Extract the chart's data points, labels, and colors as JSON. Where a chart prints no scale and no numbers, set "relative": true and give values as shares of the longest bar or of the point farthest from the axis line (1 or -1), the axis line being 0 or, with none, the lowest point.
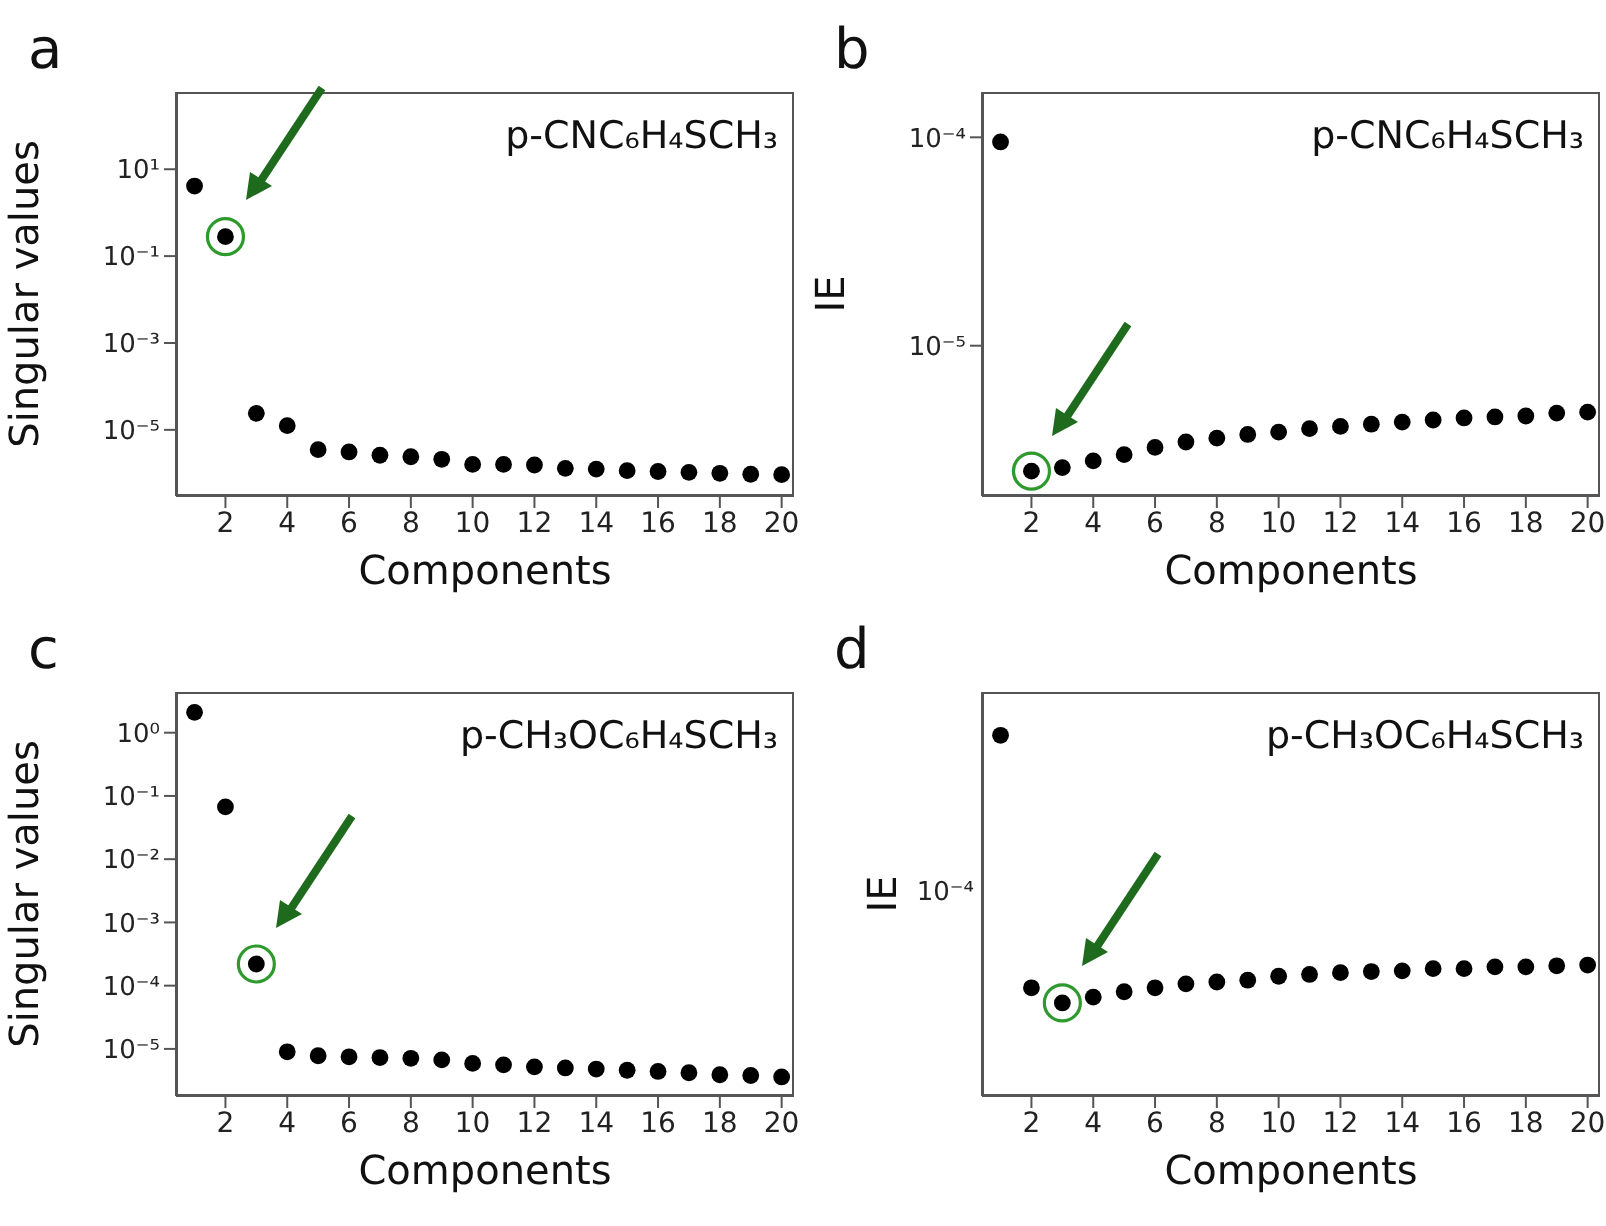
{
  "chart_data": [
    {
      "type": "scatter",
      "title": "a",
      "xlabel": "Components",
      "ylabel": "Singular values",
      "annotations": [
        "p-CNC₆H₄SCH₃"
      ],
      "log": "y",
      "marker": "circle",
      "x": [
        1,
        2,
        3,
        4,
        5,
        6,
        7,
        8,
        9,
        10,
        11,
        12,
        13,
        14,
        15,
        16,
        17,
        18,
        19,
        20
      ],
      "xlim": [
        0.4,
        20.4
      ],
      "xticks": [
        2,
        4,
        6,
        8,
        10,
        12,
        14,
        16,
        18,
        20
      ],
      "ylim": [
        3e-07,
        600
      ],
      "yticks": [
        {
          "value": 10,
          "label": "10¹"
        },
        {
          "value": 0.1,
          "label": "10⁻¹"
        },
        {
          "value": 0.001,
          "label": "10⁻³"
        },
        {
          "value": 1e-05,
          "label": "10⁻⁵"
        }
      ],
      "series": [
        {
          "color": "#000000",
          "values": [
            4.1,
            0.28,
            2.4e-05,
            1.25e-05,
            3.5e-06,
            3.1e-06,
            2.6e-06,
            2.4e-06,
            2.1e-06,
            1.6e-06,
            1.6e-06,
            1.55e-06,
            1.3e-06,
            1.25e-06,
            1.15e-06,
            1.1e-06,
            1.05e-06,
            1e-06,
            9.5e-07,
            9.3e-07
          ]
        },
        {
          "color": "#2e9a2e",
          "values": [
            null,
            0.28,
            null,
            null,
            null,
            null,
            null,
            null,
            null,
            null,
            null,
            null,
            null,
            null,
            null,
            null,
            null,
            null,
            null,
            null
          ]
        }
      ]
    },
    {
      "type": "scatter",
      "title": "b",
      "xlabel": "Components",
      "ylabel": "IE",
      "annotations": [
        "p-CNC₆H₄SCH₃"
      ],
      "log": "y",
      "marker": "circle",
      "x": [
        1,
        2,
        3,
        4,
        5,
        6,
        7,
        8,
        9,
        10,
        11,
        12,
        13,
        14,
        15,
        16,
        17,
        18,
        19,
        20
      ],
      "xlim": [
        0.4,
        20.4
      ],
      "xticks": [
        2,
        4,
        6,
        8,
        10,
        12,
        14,
        16,
        18,
        20
      ],
      "ylim": [
        1.9e-06,
        0.000165
      ],
      "yticks": [
        {
          "value": 0.0001,
          "label": "10⁻⁴"
        },
        {
          "value": 1e-05,
          "label": "10⁻⁵"
        }
      ],
      "series": [
        {
          "color": "#000000",
          "values": [
            9.5e-05,
            2.5e-06,
            2.6e-06,
            2.8e-06,
            3e-06,
            3.25e-06,
            3.45e-06,
            3.6e-06,
            3.75e-06,
            3.85e-06,
            4e-06,
            4.1e-06,
            4.2e-06,
            4.3e-06,
            4.4e-06,
            4.5e-06,
            4.55e-06,
            4.6e-06,
            4.75e-06,
            4.8e-06
          ]
        },
        {
          "color": "#2e9a2e",
          "values": [
            null,
            2.5e-06,
            null,
            null,
            null,
            null,
            null,
            null,
            null,
            null,
            null,
            null,
            null,
            null,
            null,
            null,
            null,
            null,
            null,
            null
          ]
        }
      ]
    },
    {
      "type": "scatter",
      "title": "c",
      "xlabel": "Components",
      "ylabel": "Singular values",
      "annotations": [
        "p-CH₃OC₆H₄SCH₃"
      ],
      "log": "y",
      "marker": "circle",
      "x": [
        1,
        2,
        3,
        4,
        5,
        6,
        7,
        8,
        9,
        10,
        11,
        12,
        13,
        14,
        15,
        16,
        17,
        18,
        19,
        20
      ],
      "xlim": [
        0.4,
        20.4
      ],
      "xticks": [
        2,
        4,
        6,
        8,
        10,
        12,
        14,
        16,
        18,
        20
      ],
      "ylim": [
        1.8e-06,
        4.4
      ],
      "yticks": [
        {
          "value": 1,
          "label": "10⁰"
        },
        {
          "value": 0.1,
          "label": "10⁻¹"
        },
        {
          "value": 0.01,
          "label": "10⁻²"
        },
        {
          "value": 0.001,
          "label": "10⁻³"
        },
        {
          "value": 0.0001,
          "label": "10⁻⁴"
        },
        {
          "value": 1e-05,
          "label": "10⁻⁵"
        }
      ],
      "series": [
        {
          "color": "#000000",
          "values": [
            2.1,
            0.067,
            0.00022,
            9e-06,
            7.8e-06,
            7.5e-06,
            7.3e-06,
            7.1e-06,
            6.7e-06,
            5.9e-06,
            5.6e-06,
            5.2e-06,
            5e-06,
            4.8e-06,
            4.6e-06,
            4.4e-06,
            4.2e-06,
            3.9e-06,
            3.8e-06,
            3.6e-06
          ]
        },
        {
          "color": "#2e9a2e",
          "values": [
            null,
            null,
            0.00022,
            null,
            null,
            null,
            null,
            null,
            null,
            null,
            null,
            null,
            null,
            null,
            null,
            null,
            null,
            null,
            null,
            null
          ]
        }
      ]
    },
    {
      "type": "scatter",
      "title": "d",
      "xlabel": "Components",
      "ylabel": "IE",
      "annotations": [
        "p-CH₃OC₆H₄SCH₃",
        "10⁻⁴"
      ],
      "relative": true,
      "marker": "circle",
      "x": [
        1,
        2,
        3,
        4,
        5,
        6,
        7,
        8,
        9,
        10,
        11,
        12,
        13,
        14,
        15,
        16,
        17,
        18,
        19,
        20
      ],
      "xlim": [
        0.4,
        20.4
      ],
      "xticks": [
        2,
        4,
        6,
        8,
        10,
        12,
        14,
        16,
        18,
        20
      ],
      "series": [
        {
          "color": "#000000",
          "values": [
            1,
            0.3,
            0.258,
            0.274,
            0.289,
            0.3,
            0.311,
            0.316,
            0.321,
            0.332,
            0.337,
            0.342,
            0.345,
            0.347,
            0.353,
            0.353,
            0.358,
            0.358,
            0.361,
            0.363
          ]
        },
        {
          "color": "#2e9a2e",
          "values": [
            null,
            null,
            0.258,
            null,
            null,
            null,
            null,
            null,
            null,
            null,
            null,
            null,
            null,
            null,
            null,
            null,
            null,
            null,
            null,
            null
          ]
        }
      ]
    }
  ]
}
